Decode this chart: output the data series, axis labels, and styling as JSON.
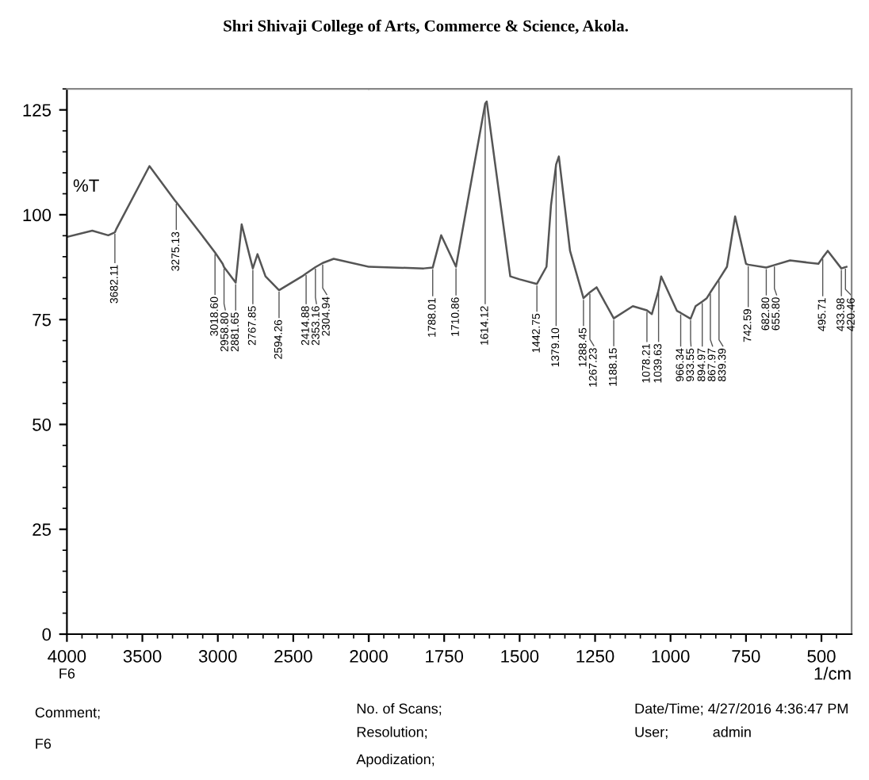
{
  "chart_data": [
    {
      "type": "line",
      "title": "Shri Shivaji College of Arts, Commerce & Science, Akola.",
      "ylabel": "%T",
      "x": [
        4000,
        3832,
        3726,
        3682.11,
        3674,
        3453,
        3284,
        3275.13,
        3105,
        3018.6,
        2968,
        2958.8,
        2881.65,
        2842,
        2767.85,
        2737,
        2684,
        2594.26,
        2442,
        2414.88,
        2353.16,
        2304.94,
        2232,
        2000
      ],
      "series": [
        {
          "color": "#555555",
          "values": [
            94.7,
            96.2,
            95.1,
            95.8,
            96.5,
            111.6,
            103.4,
            103,
            95.1,
            91,
            88.3,
            87.5,
            83.8,
            97.7,
            87.2,
            90.6,
            85.3,
            82,
            85.3,
            86,
            87.5,
            88.5,
            89.5,
            87.6
          ]
        }
      ],
      "xlim": [
        4000,
        2000
      ],
      "ylim": [
        0,
        130
      ],
      "xticks": [
        4000,
        3500,
        3000,
        2500,
        {
          "value": 2000,
          "label": null
        }
      ],
      "yticks": [
        0,
        25,
        50,
        75,
        100,
        125
      ],
      "grid": false,
      "legend": false,
      "marker": "none",
      "line_style": "solid",
      "annotations": [
        {
          "text": "3682.11",
          "x": 3682.11,
          "y": 95.8
        },
        {
          "text": "3275.13",
          "x": 3275.13,
          "y": 103
        },
        {
          "text": "3018.60",
          "x": 3018.6,
          "y": 91
        },
        {
          "text": "2958.80",
          "x": 2958.8,
          "y": 87.5
        },
        {
          "text": "2881.65",
          "x": 2881.65,
          "y": 83.8
        },
        {
          "text": "2767.85",
          "x": 2767.85,
          "y": 87.2
        },
        {
          "text": "2594.26",
          "x": 2594.26,
          "y": 82
        },
        {
          "text": "2414.88",
          "x": 2414.88,
          "y": 86
        },
        {
          "text": "2353.16",
          "x": 2353.16,
          "y": 87.5
        },
        {
          "text": "2304.94",
          "x": 2304.94,
          "y": 88.5
        },
        "F6",
        "Comment;",
        "F6",
        "No. of Scans;",
        "Resolution;",
        "Apodization;",
        "Date/Time; 4/27/2016 4:36:47 PM",
        "User;",
        "admin"
      ]
    },
    {
      "type": "line",
      "xlabel": "1/cm",
      "x": [
        2000,
        1818,
        1788.01,
        1760,
        1710.86,
        1614.12,
        1609,
        1531,
        1500,
        1442.75,
        1411,
        1396,
        1379.1,
        1370,
        1333,
        1288.45,
        1267.23,
        1245,
        1188.15,
        1125,
        1078.21,
        1062,
        1039.63,
        1031,
        979,
        966.34,
        933.55,
        917,
        894.97,
        880,
        867.97,
        839.39,
        813,
        786,
        750,
        742.59,
        682.8,
        655.8,
        604,
        510,
        495.71,
        479,
        433.98,
        420.46,
        417
      ],
      "series": [
        {
          "color": "#555555",
          "values": [
            87.6,
            87.2,
            87.4,
            95.1,
            87.6,
            126.5,
            127,
            85.3,
            84.6,
            83.5,
            87.6,
            102.3,
            112,
            113.9,
            91.4,
            80.1,
            81.5,
            82.7,
            75.3,
            78.2,
            77.2,
            76.3,
            82,
            85.3,
            77.1,
            76.6,
            75.2,
            78.2,
            79.3,
            80.1,
            81.5,
            84.6,
            87.6,
            99.6,
            88.3,
            88.1,
            87.4,
            88,
            89.1,
            88.3,
            89.8,
            91.4,
            87.2,
            87.5,
            87.6
          ]
        }
      ],
      "xlim": [
        2000,
        400
      ],
      "ylim": [
        0,
        130
      ],
      "xticks": [
        2000,
        1750,
        1500,
        1250,
        1000,
        750,
        500
      ],
      "tick_labels": "x",
      "grid": false,
      "legend": false,
      "marker": "none",
      "line_style": "solid",
      "annotations": [
        {
          "text": "1788.01",
          "x": 1788.01,
          "y": 87.4
        },
        {
          "text": "1710.86",
          "x": 1710.86,
          "y": 87.6
        },
        {
          "text": "1614.12",
          "x": 1614.12,
          "y": 126.5
        },
        {
          "text": "1442.75",
          "x": 1442.75,
          "y": 83.5
        },
        {
          "text": "1379.10",
          "x": 1379.1,
          "y": 112
        },
        {
          "text": "1288.45",
          "x": 1288.45,
          "y": 80.1
        },
        {
          "text": "1267.23",
          "x": 1267.23,
          "y": 81.5
        },
        {
          "text": "1188.15",
          "x": 1188.15,
          "y": 75.3
        },
        {
          "text": "1078.21",
          "x": 1078.21,
          "y": 77.2
        },
        {
          "text": "1039.63",
          "x": 1039.63,
          "y": 82
        },
        {
          "text": "966.34",
          "x": 966.34,
          "y": 76.6
        },
        {
          "text": "933.55",
          "x": 933.55,
          "y": 75.2
        },
        {
          "text": "894.97",
          "x": 894.97,
          "y": 79.3
        },
        {
          "text": "867.97",
          "x": 867.97,
          "y": 81.5
        },
        {
          "text": "839.39",
          "x": 839.39,
          "y": 84.6
        },
        {
          "text": "742.59",
          "x": 742.59,
          "y": 88.1
        },
        {
          "text": "682.80",
          "x": 682.8,
          "y": 87.4
        },
        {
          "text": "655.80",
          "x": 655.8,
          "y": 88
        },
        {
          "text": "495.71",
          "x": 495.71,
          "y": 89.8
        },
        {
          "text": "433.98",
          "x": 433.98,
          "y": 87.2
        },
        {
          "text": "420.46",
          "x": 420.46,
          "y": 87.5
        }
      ]
    }
  ]
}
